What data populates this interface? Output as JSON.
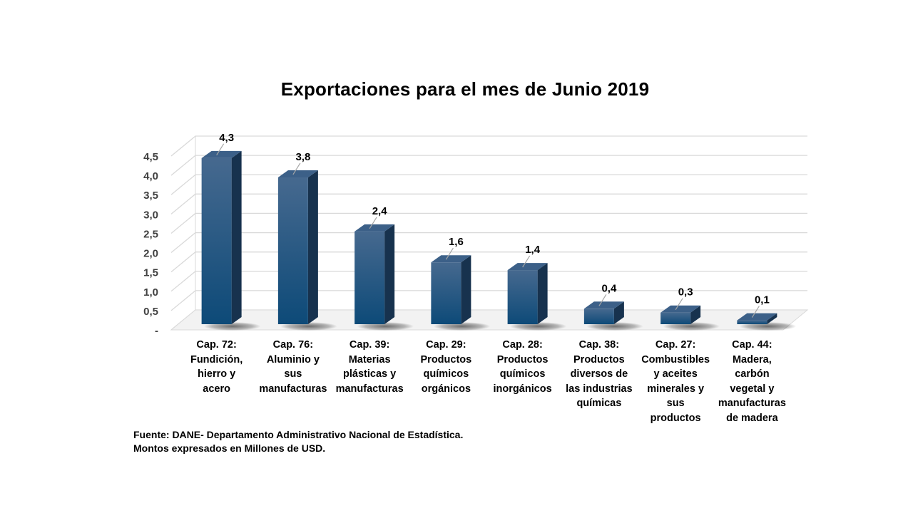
{
  "chart_data": {
    "type": "bar",
    "title": "Exportaciones para el mes de Junio 2019",
    "categories": [
      "Cap. 72: Fundición, hierro y acero",
      "Cap. 76: Aluminio y sus manufacturas",
      "Cap. 39: Materias plásticas y manufacturas",
      "Cap. 29: Productos químicos orgánicos",
      "Cap. 28: Productos químicos inorgánicos",
      "Cap. 38: Productos diversos de las industrias químicas",
      "Cap. 27: Combustibles y aceites minerales y sus productos",
      "Cap. 44: Madera, carbón vegetal y manufacturas de madera"
    ],
    "category_lines": [
      [
        "Cap. 72:",
        "Fundición,",
        "hierro y",
        "acero"
      ],
      [
        "Cap. 76:",
        "Aluminio y",
        "sus",
        "manufacturas"
      ],
      [
        "Cap. 39:",
        "Materias",
        "plásticas y",
        "manufacturas"
      ],
      [
        "Cap. 29:",
        "Productos",
        "químicos",
        "orgánicos"
      ],
      [
        "Cap. 28:",
        "Productos",
        "químicos",
        "inorgánicos"
      ],
      [
        "Cap. 38:",
        "Productos",
        "diversos de",
        "las industrias",
        "químicas"
      ],
      [
        "Cap. 27:",
        "Combustibles",
        "y aceites",
        "minerales y",
        "sus",
        "productos"
      ],
      [
        "Cap. 44:",
        "Madera,",
        "carbón",
        "vegetal y",
        "manufacturas",
        "de madera"
      ]
    ],
    "values": [
      4.3,
      3.8,
      2.4,
      1.6,
      1.4,
      0.4,
      0.3,
      0.1
    ],
    "value_labels": [
      "4,3",
      "3,8",
      "2,4",
      "1,6",
      "1,4",
      "0,4",
      "0,3",
      "0,1"
    ],
    "ylim": [
      0,
      4.5
    ],
    "yticks": [
      0,
      0.5,
      1.0,
      1.5,
      2.0,
      2.5,
      3.0,
      3.5,
      4.0,
      4.5
    ],
    "ytick_labels": [
      "-",
      "0,5",
      "1,0",
      "1,5",
      "2,0",
      "2,5",
      "3,0",
      "3,5",
      "4,0",
      "4,5"
    ],
    "grid": true,
    "style": "3d-column",
    "colors": {
      "bar_front_top": "#46698f",
      "bar_front_bottom": "#0d4a78",
      "bar_side": "#17324e",
      "bar_top": "#3c6088",
      "grid": "#d9d9d9",
      "leader": "#a6a6a6"
    }
  },
  "footer": {
    "source": "Fuente: DANE- Departamento Administrativo Nacional de Estadística.",
    "units": "Montos expresados en Millones de USD."
  }
}
